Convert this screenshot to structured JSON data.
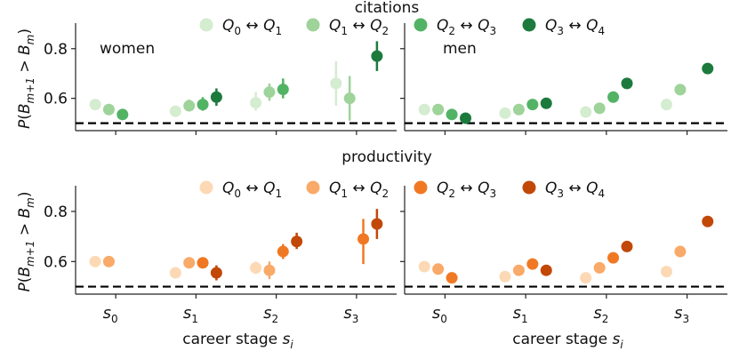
{
  "chart_data": {
    "type": "scatter",
    "xlabel": "career stage s_i",
    "ylabel": "P(B_{m+1} > B_m)",
    "yticks": [
      0.6,
      0.8
    ],
    "ylim": [
      0.47,
      0.86
    ],
    "xlim": [
      -0.5,
      3.5
    ],
    "reference_line": 0.5,
    "categories": [
      "s_0",
      "s_1",
      "s_2",
      "s_3"
    ],
    "legend_labels": [
      "Q_0 ↔ Q_1",
      "Q_1 ↔ Q_2",
      "Q_2 ↔ Q_3",
      "Q_3 ↔ Q_4"
    ],
    "rows": [
      {
        "title": "citations",
        "colors": [
          "#d4eccf",
          "#9ed39a",
          "#52b365",
          "#1c7a3d"
        ],
        "panels": [
          {
            "label": "women",
            "series": [
              {
                "name": "Q_0 ↔ Q_1",
                "values": [
                  0.575,
                  0.548,
                  0.582,
                  0.66
                ],
                "err": [
                  [
                    0.56,
                    0.59
                  ],
                  [
                    0.535,
                    0.56
                  ],
                  [
                    0.55,
                    0.625
                  ],
                  [
                    0.57,
                    0.75
                  ]
                ]
              },
              {
                "name": "Q_1 ↔ Q_2",
                "values": [
                  0.555,
                  0.57,
                  0.625,
                  0.6
                ],
                "err": [
                  [
                    0.54,
                    0.57
                  ],
                  [
                    0.55,
                    0.595
                  ],
                  [
                    0.59,
                    0.66
                  ],
                  [
                    0.51,
                    0.69
                  ]
                ]
              },
              {
                "name": "Q_2 ↔ Q_3",
                "values": [
                  0.535,
                  0.575,
                  0.636,
                  null
                ],
                "err": [
                  [
                    0.52,
                    0.55
                  ],
                  [
                    0.55,
                    0.605
                  ],
                  [
                    0.6,
                    0.68
                  ],
                  null
                ]
              },
              {
                "name": "Q_3 ↔ Q_4",
                "values": [
                  null,
                  0.605,
                  null,
                  0.77
                ],
                "err": [
                  null,
                  [
                    0.57,
                    0.64
                  ],
                  null,
                  [
                    0.71,
                    0.83
                  ]
                ]
              }
            ]
          },
          {
            "label": "men",
            "series": [
              {
                "name": "Q_0 ↔ Q_1",
                "values": [
                  0.555,
                  0.54,
                  0.545,
                  0.575
                ],
                "err": [
                  [
                    0.545,
                    0.565
                  ],
                  [
                    0.53,
                    0.55
                  ],
                  [
                    0.535,
                    0.555
                  ],
                  [
                    0.555,
                    0.595
                  ]
                ]
              },
              {
                "name": "Q_1 ↔ Q_2",
                "values": [
                  0.555,
                  0.555,
                  0.56,
                  0.635
                ],
                "err": [
                  [
                    0.545,
                    0.565
                  ],
                  [
                    0.545,
                    0.565
                  ],
                  [
                    0.55,
                    0.57
                  ],
                  [
                    0.62,
                    0.65
                  ]
                ]
              },
              {
                "name": "Q_2 ↔ Q_3",
                "values": [
                  0.535,
                  0.575,
                  0.605,
                  null
                ],
                "err": [
                  [
                    0.525,
                    0.545
                  ],
                  [
                    0.565,
                    0.585
                  ],
                  [
                    0.595,
                    0.615
                  ],
                  null
                ]
              },
              {
                "name": "Q_3 ↔ Q_4",
                "values": [
                  0.52,
                  0.58,
                  0.66,
                  0.72
                ],
                "err": [
                  [
                    0.51,
                    0.53
                  ],
                  [
                    0.57,
                    0.59
                  ],
                  [
                    0.65,
                    0.67
                  ],
                  [
                    0.71,
                    0.73
                  ]
                ]
              }
            ]
          }
        ]
      },
      {
        "title": "productivity",
        "colors": [
          "#fcd9b4",
          "#f9a968",
          "#f07823",
          "#c24808"
        ],
        "panels": [
          {
            "label": "",
            "series": [
              {
                "name": "Q_0 ↔ Q_1",
                "values": [
                  0.6,
                  0.555,
                  0.575,
                  null
                ],
                "err": [
                  [
                    0.59,
                    0.61
                  ],
                  [
                    0.54,
                    0.57
                  ],
                  [
                    0.55,
                    0.6
                  ],
                  null
                ]
              },
              {
                "name": "Q_1 ↔ Q_2",
                "values": [
                  0.6,
                  0.595,
                  0.565,
                  null
                ],
                "err": [
                  [
                    0.59,
                    0.61
                  ],
                  [
                    0.575,
                    0.615
                  ],
                  [
                    0.53,
                    0.6
                  ],
                  null
                ]
              },
              {
                "name": "Q_2 ↔ Q_3",
                "values": [
                  null,
                  0.595,
                  0.64,
                  0.69
                ],
                "err": [
                  null,
                  [
                    0.575,
                    0.615
                  ],
                  [
                    0.61,
                    0.67
                  ],
                  [
                    0.59,
                    0.77
                  ]
                ]
              },
              {
                "name": "Q_3 ↔ Q_4",
                "values": [
                  null,
                  0.555,
                  0.68,
                  0.75
                ],
                "err": [
                  null,
                  [
                    0.525,
                    0.585
                  ],
                  [
                    0.65,
                    0.715
                  ],
                  [
                    0.69,
                    0.81
                  ]
                ]
              }
            ]
          },
          {
            "label": "",
            "series": [
              {
                "name": "Q_0 ↔ Q_1",
                "values": [
                  0.58,
                  0.54,
                  0.535,
                  0.56
                ],
                "err": [
                  [
                    0.57,
                    0.59
                  ],
                  [
                    0.53,
                    0.55
                  ],
                  [
                    0.525,
                    0.545
                  ],
                  [
                    0.545,
                    0.575
                  ]
                ]
              },
              {
                "name": "Q_1 ↔ Q_2",
                "values": [
                  0.57,
                  0.565,
                  0.575,
                  0.64
                ],
                "err": [
                  [
                    0.56,
                    0.58
                  ],
                  [
                    0.555,
                    0.575
                  ],
                  [
                    0.565,
                    0.585
                  ],
                  [
                    0.63,
                    0.65
                  ]
                ]
              },
              {
                "name": "Q_2 ↔ Q_3",
                "values": [
                  0.535,
                  0.59,
                  0.615,
                  null
                ],
                "err": [
                  [
                    0.525,
                    0.545
                  ],
                  [
                    0.58,
                    0.6
                  ],
                  [
                    0.605,
                    0.625
                  ],
                  null
                ]
              },
              {
                "name": "Q_3 ↔ Q_4",
                "values": [
                  null,
                  0.565,
                  0.66,
                  0.76
                ],
                "err": [
                  null,
                  [
                    0.555,
                    0.575
                  ],
                  [
                    0.65,
                    0.67
                  ],
                  [
                    0.75,
                    0.77
                  ]
                ]
              }
            ]
          }
        ]
      }
    ]
  }
}
